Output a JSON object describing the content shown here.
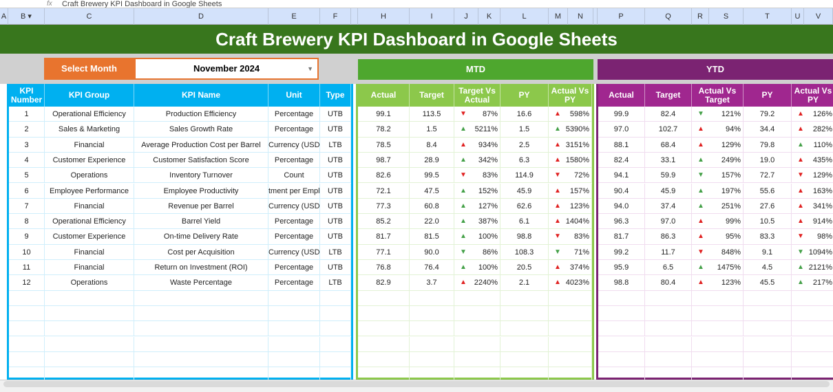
{
  "formula_bar": {
    "content": "Craft Brewery KPI Dashboard in Google Sheets"
  },
  "columns": [
    "A",
    "B ▾",
    "C",
    "D",
    "E",
    "F",
    "",
    "H",
    "I",
    "J",
    "K",
    "L",
    "M",
    "N",
    "",
    "P",
    "Q",
    "R",
    "S",
    "T",
    "U",
    "V"
  ],
  "title": "Craft Brewery KPI Dashboard in Google Sheets",
  "selector": {
    "label": "Select Month",
    "value": "November 2024"
  },
  "mtd_label": "MTD",
  "ytd_label": "YTD",
  "colors": {
    "title_bg": "#38761d",
    "kpi_header": "#00b0f0",
    "mtd_header": "#8cc84b",
    "ytd_header": "#a0278f",
    "up": "#43a047",
    "down": "#e02020"
  },
  "kpi_headers": [
    "KPI Number",
    "KPI Group",
    "KPI Name",
    "Unit",
    "Type"
  ],
  "mtd_headers": [
    "Actual",
    "Target",
    "Target Vs Actual",
    "PY",
    "Actual Vs PY"
  ],
  "ytd_headers": [
    "Actual",
    "Target",
    "Actual Vs Target",
    "PY",
    "Actual Vs PY"
  ],
  "rows": [
    {
      "n": "1",
      "group": "Operational Efficiency",
      "name": "Production Efficiency",
      "unit": "Percentage",
      "type": "UTB",
      "mtd": {
        "actual": "99.1",
        "target": "113.5",
        "tva": "87%",
        "tva_i": "down-red",
        "py": "16.6",
        "avp": "598%",
        "avp_i": "up-red"
      },
      "ytd": {
        "actual": "99.9",
        "target": "82.4",
        "avt": "121%",
        "avt_i": "down-green",
        "py": "79.2",
        "avp": "126%",
        "avp_i": "up-red"
      }
    },
    {
      "n": "2",
      "group": "Sales & Marketing",
      "name": "Sales Growth Rate",
      "unit": "Percentage",
      "type": "UTB",
      "mtd": {
        "actual": "78.2",
        "target": "1.5",
        "tva": "5211%",
        "tva_i": "up-green",
        "py": "1.5",
        "avp": "5390%",
        "avp_i": "up-green"
      },
      "ytd": {
        "actual": "97.0",
        "target": "102.7",
        "avt": "94%",
        "avt_i": "up-red",
        "py": "34.4",
        "avp": "282%",
        "avp_i": "up-red"
      }
    },
    {
      "n": "3",
      "group": "Financial",
      "name": "Average Production Cost per Barrel",
      "unit": "Currency (USD)",
      "type": "LTB",
      "mtd": {
        "actual": "78.5",
        "target": "8.4",
        "tva": "934%",
        "tva_i": "up-red",
        "py": "2.5",
        "avp": "3151%",
        "avp_i": "up-red"
      },
      "ytd": {
        "actual": "88.1",
        "target": "68.4",
        "avt": "129%",
        "avt_i": "up-red",
        "py": "79.8",
        "avp": "110%",
        "avp_i": "up-green"
      }
    },
    {
      "n": "4",
      "group": "Customer Experience",
      "name": "Customer Satisfaction Score",
      "unit": "Percentage",
      "type": "UTB",
      "mtd": {
        "actual": "98.7",
        "target": "28.9",
        "tva": "342%",
        "tva_i": "up-green",
        "py": "6.3",
        "avp": "1580%",
        "avp_i": "up-red"
      },
      "ytd": {
        "actual": "82.4",
        "target": "33.1",
        "avt": "249%",
        "avt_i": "up-green",
        "py": "19.0",
        "avp": "435%",
        "avp_i": "up-red"
      }
    },
    {
      "n": "5",
      "group": "Operations",
      "name": "Inventory Turnover",
      "unit": "Count",
      "type": "UTB",
      "mtd": {
        "actual": "82.6",
        "target": "99.5",
        "tva": "83%",
        "tva_i": "down-red",
        "py": "114.9",
        "avp": "72%",
        "avp_i": "down-red"
      },
      "ytd": {
        "actual": "94.1",
        "target": "59.9",
        "avt": "157%",
        "avt_i": "down-green",
        "py": "72.7",
        "avp": "129%",
        "avp_i": "down-red"
      }
    },
    {
      "n": "6",
      "group": "Employee Performance",
      "name": "Employee Productivity",
      "unit": "tment per Emplo",
      "type": "UTB",
      "mtd": {
        "actual": "72.1",
        "target": "47.5",
        "tva": "152%",
        "tva_i": "up-green",
        "py": "45.9",
        "avp": "157%",
        "avp_i": "up-red"
      },
      "ytd": {
        "actual": "90.4",
        "target": "45.9",
        "avt": "197%",
        "avt_i": "up-green",
        "py": "55.6",
        "avp": "163%",
        "avp_i": "up-red"
      }
    },
    {
      "n": "7",
      "group": "Financial",
      "name": "Revenue per Barrel",
      "unit": "Currency (USD)",
      "type": "UTB",
      "mtd": {
        "actual": "77.3",
        "target": "60.8",
        "tva": "127%",
        "tva_i": "up-green",
        "py": "62.6",
        "avp": "123%",
        "avp_i": "up-red"
      },
      "ytd": {
        "actual": "94.0",
        "target": "37.4",
        "avt": "251%",
        "avt_i": "up-green",
        "py": "27.6",
        "avp": "341%",
        "avp_i": "up-red"
      }
    },
    {
      "n": "8",
      "group": "Operational Efficiency",
      "name": "Barrel Yield",
      "unit": "Percentage",
      "type": "UTB",
      "mtd": {
        "actual": "85.2",
        "target": "22.0",
        "tva": "387%",
        "tva_i": "up-green",
        "py": "6.1",
        "avp": "1404%",
        "avp_i": "up-red"
      },
      "ytd": {
        "actual": "96.3",
        "target": "97.0",
        "avt": "99%",
        "avt_i": "up-red",
        "py": "10.5",
        "avp": "914%",
        "avp_i": "up-red"
      }
    },
    {
      "n": "9",
      "group": "Customer Experience",
      "name": "On-time Delivery Rate",
      "unit": "Percentage",
      "type": "UTB",
      "mtd": {
        "actual": "81.7",
        "target": "81.5",
        "tva": "100%",
        "tva_i": "up-green",
        "py": "98.8",
        "avp": "83%",
        "avp_i": "down-red"
      },
      "ytd": {
        "actual": "81.7",
        "target": "86.3",
        "avt": "95%",
        "avt_i": "up-red",
        "py": "83.3",
        "avp": "98%",
        "avp_i": "down-red"
      }
    },
    {
      "n": "10",
      "group": "Financial",
      "name": "Cost per Acquisition",
      "unit": "Currency (USD)",
      "type": "LTB",
      "mtd": {
        "actual": "77.1",
        "target": "90.0",
        "tva": "86%",
        "tva_i": "down-green",
        "py": "108.3",
        "avp": "71%",
        "avp_i": "down-green"
      },
      "ytd": {
        "actual": "99.2",
        "target": "11.7",
        "avt": "848%",
        "avt_i": "down-red",
        "py": "9.1",
        "avp": "1094%",
        "avp_i": "down-green"
      }
    },
    {
      "n": "11",
      "group": "Financial",
      "name": "Return on Investment (ROI)",
      "unit": "Percentage",
      "type": "UTB",
      "mtd": {
        "actual": "76.8",
        "target": "76.4",
        "tva": "100%",
        "tva_i": "up-green",
        "py": "20.5",
        "avp": "374%",
        "avp_i": "up-red"
      },
      "ytd": {
        "actual": "95.9",
        "target": "6.5",
        "avt": "1475%",
        "avt_i": "up-green",
        "py": "4.5",
        "avp": "2121%",
        "avp_i": "up-green"
      }
    },
    {
      "n": "12",
      "group": "Operations",
      "name": "Waste Percentage",
      "unit": "Percentage",
      "type": "LTB",
      "mtd": {
        "actual": "82.9",
        "target": "3.7",
        "tva": "2240%",
        "tva_i": "up-red",
        "py": "2.1",
        "avp": "4023%",
        "avp_i": "up-red"
      },
      "ytd": {
        "actual": "98.8",
        "target": "80.4",
        "avt": "123%",
        "avt_i": "up-red",
        "py": "45.5",
        "avp": "217%",
        "avp_i": "up-green"
      }
    }
  ]
}
